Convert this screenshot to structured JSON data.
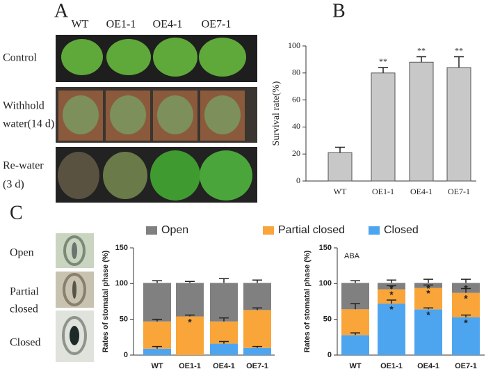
{
  "panels": {
    "a": "A",
    "b": "B",
    "c": "C"
  },
  "photos": {
    "columns": [
      "WT",
      "OE1-1",
      "OE4-1",
      "OE7-1"
    ],
    "rows": [
      [
        "Control"
      ],
      [
        "Withhold",
        "water(14 d)"
      ],
      [
        "Re-water",
        "(3 d)"
      ]
    ]
  },
  "stomata": [
    [
      "Open"
    ],
    [
      "Partial",
      "closed"
    ],
    [
      "Closed"
    ]
  ],
  "chart_data": [
    {
      "type": "bar",
      "y_label": "Survival rate(%)",
      "categories": [
        "WT",
        "OE1-1",
        "OE4-1",
        "OE7-1"
      ],
      "values": [
        21,
        80,
        88,
        84
      ],
      "errors": [
        4,
        4,
        4,
        8
      ],
      "significance": [
        null,
        "**",
        "**",
        "**"
      ],
      "color": "#c8c8c8",
      "ylim": [
        0,
        100
      ],
      "yticks": [
        0,
        20,
        40,
        60,
        80,
        100
      ]
    },
    {
      "type": "stacked_bar",
      "y_label": "Rates of stomatal phase (%)",
      "categories": [
        "WT",
        "OE1-1",
        "OE4-1",
        "OE7-1"
      ],
      "series": [
        {
          "name": "Closed",
          "color": "#4ea5ef",
          "values": [
            9,
            0,
            16,
            10
          ],
          "errors": [
            3,
            null,
            3,
            2
          ],
          "stars": [
            null,
            null,
            null,
            null
          ]
        },
        {
          "name": "Partial closed",
          "color": "#f9a53a",
          "values": [
            38,
            54,
            31,
            53
          ],
          "errors": [
            3,
            2,
            5,
            3
          ],
          "stars": [
            null,
            "*",
            null,
            null
          ]
        },
        {
          "name": "Open",
          "color": "#808080",
          "values": [
            54,
            47,
            54,
            38
          ],
          "errors": [
            3,
            2,
            6,
            4
          ],
          "stars": [
            null,
            null,
            null,
            null
          ]
        }
      ],
      "ylim": [
        0,
        150
      ],
      "yticks": [
        0,
        50,
        100,
        150
      ]
    },
    {
      "type": "stacked_bar",
      "y_label": "Rates of stomatal phase (%)",
      "annotation": "ABA",
      "categories": [
        "WT",
        "OE1-1",
        "OE4-1",
        "OE7-1"
      ],
      "series": [
        {
          "color": "#4ea5ef",
          "values": [
            28,
            72,
            64,
            53
          ],
          "errors": [
            3,
            5,
            2,
            3
          ],
          "stars": [
            null,
            "*",
            "*",
            "*"
          ]
        },
        {
          "color": "#f9a53a",
          "values": [
            36,
            20,
            30,
            34
          ],
          "errors": [
            8,
            5,
            4,
            6
          ],
          "stars": [
            null,
            "*",
            "*",
            "*"
          ]
        },
        {
          "color": "#808080",
          "values": [
            37,
            9,
            7,
            14
          ],
          "errors": [
            3,
            4,
            5,
            5
          ],
          "stars": [
            null,
            "*",
            "*",
            "*"
          ]
        }
      ],
      "ylim": [
        0,
        150
      ],
      "yticks": [
        0,
        50,
        100,
        150
      ]
    }
  ]
}
